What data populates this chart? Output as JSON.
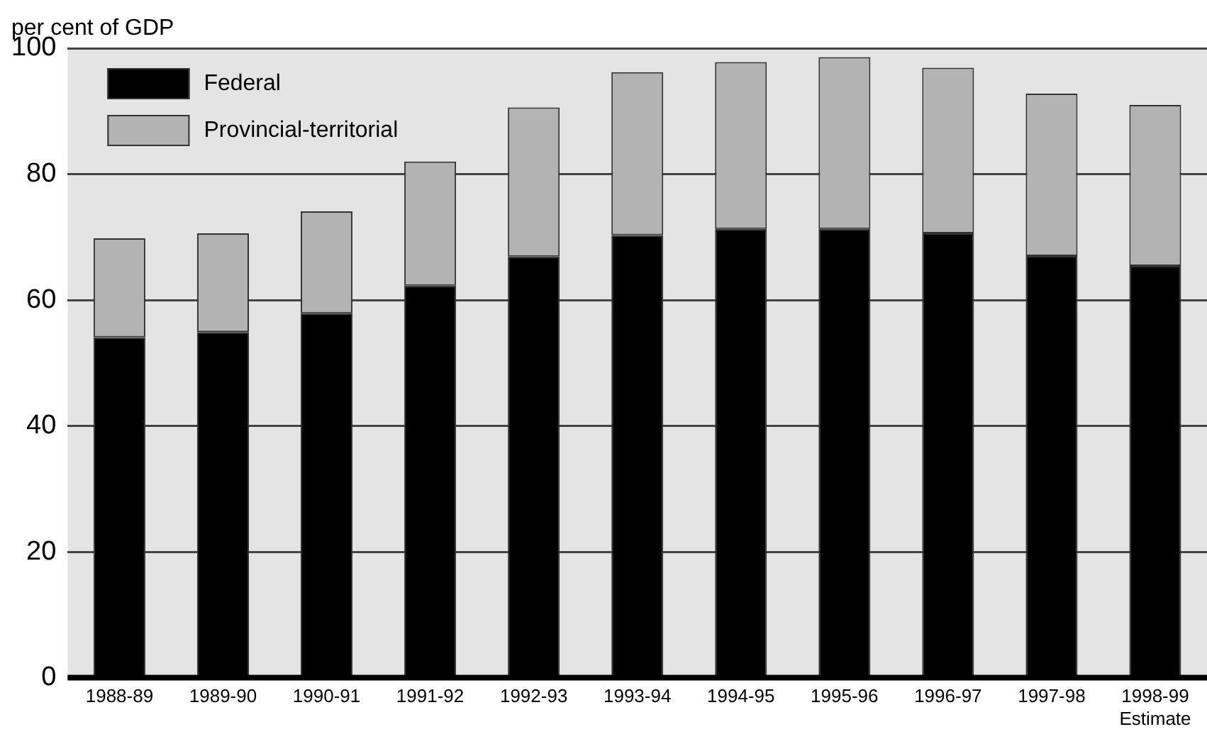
{
  "chart_data": {
    "type": "bar",
    "ylabel": "per cent of GDP",
    "stacked": true,
    "categories": [
      "1988-89",
      "1989-90",
      "1990-91",
      "1991-92",
      "1992-93",
      "1993-94",
      "1994-95",
      "1995-96",
      "1996-97",
      "1997-98",
      "1998-99\nEstimate"
    ],
    "series": [
      {
        "name": "Federal",
        "color": "#000000",
        "values": [
          54.1,
          54.9,
          57.9,
          62.3,
          66.9,
          70.3,
          71.3,
          71.3,
          70.6,
          67.0,
          65.4
        ]
      },
      {
        "name": "Provincial-territorial",
        "color": "#b3b3b3",
        "values": [
          15.7,
          15.7,
          16.2,
          19.7,
          23.7,
          25.9,
          26.5,
          27.3,
          26.3,
          25.8,
          25.6
        ]
      }
    ],
    "ylim": [
      0,
      100
    ],
    "yticks": [
      0,
      20,
      40,
      60,
      80,
      100
    ],
    "grid": "y",
    "legend": "top left"
  }
}
